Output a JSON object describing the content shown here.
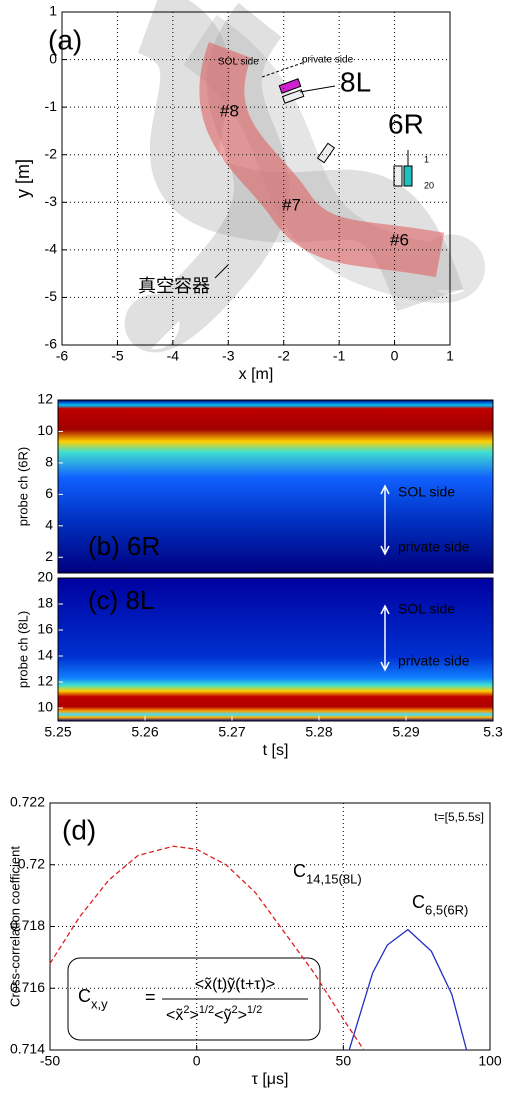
{
  "chart_data": [
    {
      "type": "map",
      "panel_label": "(a)",
      "xlabel": "x [m]",
      "ylabel": "y [m]",
      "xlim": [
        -6,
        1
      ],
      "ylim": [
        -6,
        1
      ],
      "xticks": [
        -6,
        -5,
        -4,
        -3,
        -2,
        -1,
        0,
        1
      ],
      "yticks": [
        -6,
        -5,
        -4,
        -3,
        -2,
        -1,
        0,
        1
      ],
      "grid": true,
      "annotations": [
        "8L",
        "6R",
        "#8",
        "#7",
        "#6",
        "SOL side",
        "private side",
        "真空容器",
        "1",
        "20"
      ]
    },
    {
      "type": "heatmap",
      "panel_label": "(b) 6R",
      "ylabel": "probe ch (6R)",
      "xlim": [
        5.25,
        5.3
      ],
      "ylim": [
        1,
        12
      ],
      "yticks": [
        2,
        4,
        6,
        8,
        10,
        12
      ],
      "annotations": [
        "SOL side",
        "private side"
      ]
    },
    {
      "type": "heatmap",
      "panel_label": "(c) 8L",
      "ylabel": "probe ch (8L)",
      "xlabel": "t [s]",
      "xlim": [
        5.25,
        5.3
      ],
      "xticks": [
        5.25,
        5.26,
        5.27,
        5.28,
        5.29,
        5.3
      ],
      "ylim": [
        9,
        20
      ],
      "yticks": [
        10,
        12,
        14,
        16,
        18,
        20
      ],
      "annotations": [
        "SOL side",
        "private side"
      ]
    },
    {
      "type": "line",
      "panel_label": "(d)",
      "note": "t=[5,5.5s]",
      "xlabel": "τ [μs]",
      "ylabel": "Cross-correlation coefficient",
      "xlim": [
        -50,
        100
      ],
      "xticks": [
        -50,
        0,
        50,
        100
      ],
      "ylim": [
        0.714,
        0.722
      ],
      "yticks": [
        0.714,
        0.716,
        0.718,
        0.72,
        0.722
      ],
      "grid": true,
      "series": [
        {
          "label": "C",
          "label_sub": "14,15(8L)",
          "color": "#e02020",
          "dashed": true,
          "x": [
            -50,
            -40,
            -30,
            -20,
            -8,
            0,
            10,
            20,
            30,
            40,
            50,
            57
          ],
          "values": [
            0.7168,
            0.7183,
            0.7195,
            0.7203,
            0.7206,
            0.7205,
            0.72,
            0.7191,
            0.7178,
            0.7165,
            0.715,
            0.714
          ]
        },
        {
          "label": "C",
          "label_sub": "6,5(6R)",
          "color": "#2030c0",
          "dashed": false,
          "x": [
            52,
            60,
            65,
            72,
            80,
            87,
            92
          ],
          "values": [
            0.714,
            0.7165,
            0.7174,
            0.7179,
            0.7172,
            0.7158,
            0.714
          ]
        }
      ],
      "formula": {
        "lhs": "C",
        "lhs_sub": "x,y",
        "eq": "=",
        "numerator": "<x̃(t)ỹ(t+τ)>",
        "denominator": [
          "<x̃",
          "2",
          ">",
          "1/2",
          "<ỹ",
          "2",
          ">",
          "1/2"
        ]
      }
    }
  ]
}
